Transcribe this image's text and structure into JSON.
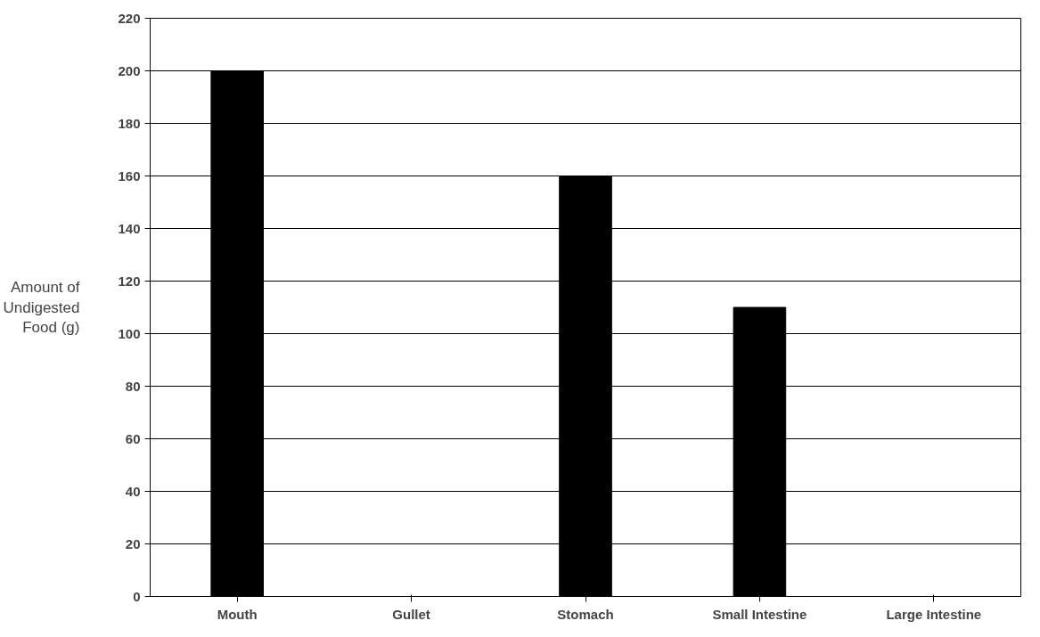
{
  "chart_data": {
    "type": "bar",
    "ylabel": "Amount of Undigested Food (g)",
    "categories": [
      "Mouth",
      "Gullet",
      "Stomach",
      "Small Intestine",
      "Large Intestine"
    ],
    "values": [
      200,
      null,
      160,
      110,
      null
    ],
    "color": "#000000",
    "ylim": [
      0,
      220
    ],
    "yticks": [
      0,
      20,
      40,
      60,
      80,
      100,
      120,
      140,
      160,
      180,
      200,
      220
    ],
    "grid": "y"
  }
}
